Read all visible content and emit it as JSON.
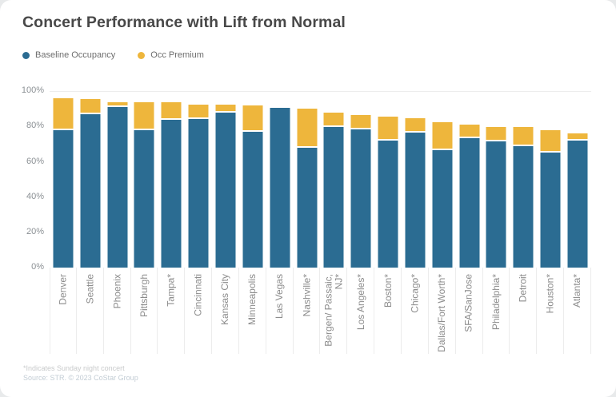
{
  "title": "Concert Performance with Lift from Normal",
  "legend": {
    "items": [
      {
        "label": "Baseline Occupancy",
        "color": "#2b6c92"
      },
      {
        "label": "Occ Premium",
        "color": "#eeb63c"
      }
    ]
  },
  "footer": {
    "footnote": "*Indicates Sunday night concert",
    "source": "Source: STR. © 2023 CoStar Group"
  },
  "chart_data": {
    "type": "bar",
    "stacked": true,
    "title": "Concert Performance with Lift from Normal",
    "categories": [
      "Denver",
      "Seattle",
      "Phoenix",
      "Pittsburgh",
      "Tampa*",
      "Cincinnati",
      "Kansas City",
      "Minneapolis",
      "Las Vegas",
      "Nashville*",
      "Bergen/ Passaic,\nNJ*",
      "Los Angeles*",
      "Boston*",
      "Chicago*",
      "Dallas/Fort Worth*",
      "SFA/SanJose",
      "Philadelphia*",
      "Detroit",
      "Houston*",
      "Atlanta*"
    ],
    "series": [
      {
        "name": "Baseline Occupancy",
        "color": "#2b6c92",
        "values": [
          78,
          87,
          91,
          78,
          83.5,
          84,
          88,
          77,
          90.5,
          68,
          79.5,
          78.5,
          72,
          76.5,
          66.5,
          73.5,
          71.5,
          69,
          65,
          72
        ]
      },
      {
        "name": "Occ Premium",
        "color": "#eeb63c",
        "values": [
          18,
          8.5,
          2.5,
          15.5,
          10,
          8.5,
          4.5,
          15,
          1,
          22,
          8.5,
          8,
          13.5,
          8,
          16,
          7.5,
          8,
          10.5,
          13,
          4
        ]
      }
    ],
    "xlabel": "",
    "ylabel": "",
    "ylim": [
      0,
      100
    ],
    "y_ticks": [
      "0%",
      "20%",
      "40%",
      "60%",
      "80%",
      "100%"
    ],
    "grid": false,
    "legend_position": "top-left"
  }
}
